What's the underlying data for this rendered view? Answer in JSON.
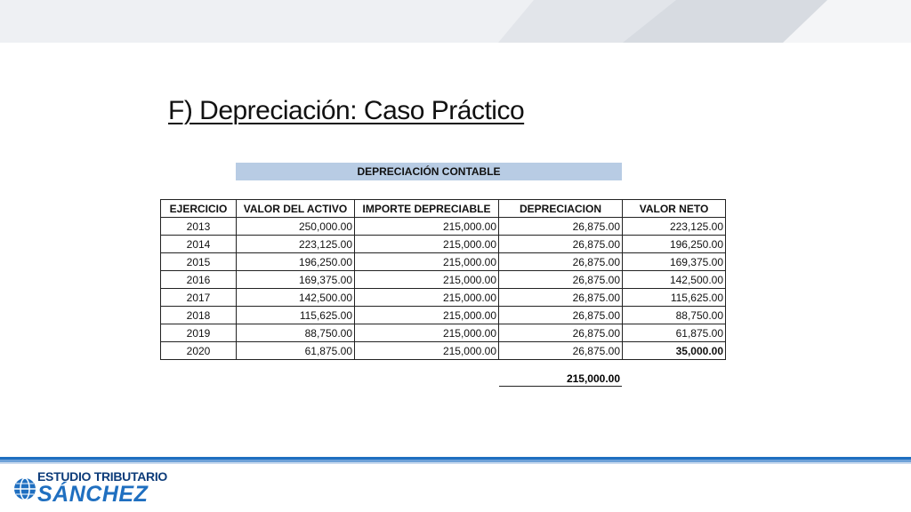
{
  "title": "F) Depreciación: Caso Práctico",
  "table": {
    "caption": "DEPRECIACIÓN CONTABLE",
    "headers": [
      "EJERCICIO",
      "VALOR DEL ACTIVO",
      "IMPORTE DEPRECIABLE",
      "DEPRECIACION",
      "VALOR NETO"
    ],
    "rows": [
      [
        "2013",
        "250,000.00",
        "215,000.00",
        "26,875.00",
        "223,125.00"
      ],
      [
        "2014",
        "223,125.00",
        "215,000.00",
        "26,875.00",
        "196,250.00"
      ],
      [
        "2015",
        "196,250.00",
        "215,000.00",
        "26,875.00",
        "169,375.00"
      ],
      [
        "2016",
        "169,375.00",
        "215,000.00",
        "26,875.00",
        "142,500.00"
      ],
      [
        "2017",
        "142,500.00",
        "215,000.00",
        "26,875.00",
        "115,625.00"
      ],
      [
        "2018",
        "115,625.00",
        "215,000.00",
        "26,875.00",
        "88,750.00"
      ],
      [
        "2019",
        "88,750.00",
        "215,000.00",
        "26,875.00",
        "61,875.00"
      ],
      [
        "2020",
        "61,875.00",
        "215,000.00",
        "26,875.00",
        "35,000.00"
      ]
    ],
    "total_depreciation": "215,000.00"
  },
  "footer": {
    "logo_line1": "ESTUDIO TRIBUTARIO",
    "logo_line2": "SÁNCHEZ",
    "icon": "globe-icon"
  },
  "colors": {
    "caption_bg": "#b8cce4",
    "footer_blue": "#1f6fc0",
    "footer_dark": "#0d3c7a"
  }
}
